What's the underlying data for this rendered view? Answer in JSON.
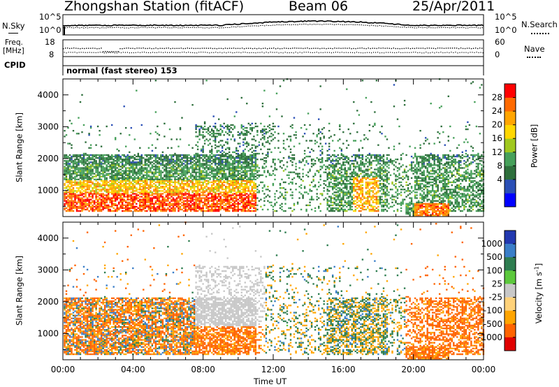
{
  "header": {
    "station": "Zhongshan Station (fitACF)",
    "beam": "Beam 06",
    "date": "25/Apr/2011"
  },
  "status_panels": {
    "noise": {
      "left_label": "N.Sky",
      "right_label": "N.Search",
      "left_ticks": [
        "10^5",
        "10^0"
      ],
      "right_ticks": [
        "10^5",
        "10^0"
      ]
    },
    "frequency": {
      "left_label_top": "Freq.",
      "left_label_bottom": "[MHz]",
      "left_ticks": [
        "18",
        "8"
      ],
      "right_label": "Nave",
      "right_ticks": [
        "60",
        "0"
      ]
    },
    "cpid": {
      "label": "CPID",
      "text": "normal (fast stereo) 153"
    }
  },
  "chart_data": [
    {
      "type": "heatmap",
      "title": "",
      "ylabel": "Slant Range [km]",
      "y_ticks": [
        "4000",
        "3000",
        "2000",
        "1000"
      ],
      "ylim": [
        180,
        4500
      ],
      "x_ticks": [
        "00:00",
        "04:00",
        "08:00",
        "12:00",
        "16:00",
        "20:00",
        "00:00"
      ],
      "xlim_hours": [
        0,
        24
      ],
      "colorbar": {
        "label": "Power [dB]",
        "tick_labels": [
          "28",
          "24",
          "20",
          "16",
          "12",
          "8",
          "4"
        ],
        "range": [
          0,
          30
        ],
        "colors": [
          "#0000ff",
          "#2a4fb6",
          "#2e6f3c",
          "#46a05a",
          "#a0c81e",
          "#ffd700",
          "#ffa500",
          "#ff6a00",
          "#ff0000"
        ]
      },
      "grid": false,
      "legend": "right"
    },
    {
      "type": "heatmap",
      "title": "",
      "ylabel": "Slant Range [km]",
      "y_ticks": [
        "4000",
        "3000",
        "2000",
        "1000"
      ],
      "ylim": [
        180,
        4500
      ],
      "x_ticks": [
        "00:00",
        "04:00",
        "08:00",
        "12:00",
        "16:00",
        "20:00",
        "00:00"
      ],
      "xlabel": "Time UT",
      "xlim_hours": [
        0,
        24
      ],
      "colorbar": {
        "label": "Velocity [m s",
        "label_superscript": "-1",
        "label_close": "]",
        "tick_labels": [
          "1000",
          "500",
          "100",
          "25",
          "-25",
          "-100",
          "-500",
          "-1000"
        ],
        "range": [
          -1200,
          1200
        ],
        "colors": [
          "#2238b0",
          "#3a7ec8",
          "#2e7d50",
          "#5cc83c",
          "#c8c8c8",
          "#ffd27a",
          "#ffa500",
          "#ff6400",
          "#e00000"
        ]
      },
      "grid": false,
      "legend": "right"
    }
  ]
}
